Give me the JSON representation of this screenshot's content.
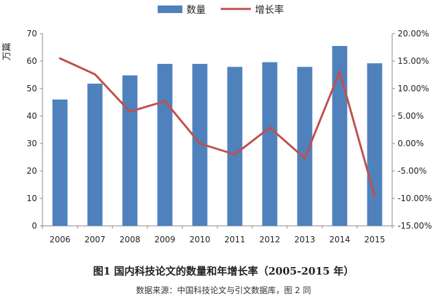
{
  "chart_data": {
    "type": "bar+line",
    "categories": [
      "2006",
      "2007",
      "2008",
      "2009",
      "2010",
      "2011",
      "2012",
      "2013",
      "2014",
      "2015"
    ],
    "series": [
      {
        "name": "数量",
        "type": "bar",
        "axis": "left",
        "color": "#4f81bd",
        "values": [
          46.0,
          51.8,
          54.8,
          59.0,
          59.0,
          57.9,
          59.6,
          57.9,
          65.5,
          59.2
        ]
      },
      {
        "name": "增长率",
        "type": "line",
        "axis": "right",
        "color": "#c0504d",
        "values": [
          15.5,
          12.6,
          5.8,
          7.7,
          0.0,
          -2.0,
          2.9,
          -2.7,
          13.1,
          -9.6
        ]
      }
    ],
    "y_left": {
      "label": "万篇",
      "min": 0,
      "max": 70,
      "step": 10,
      "ticks": [
        "0",
        "10",
        "20",
        "30",
        "40",
        "50",
        "60",
        "70"
      ]
    },
    "y_right": {
      "min": -15,
      "max": 20,
      "step": 5,
      "ticks": [
        "-15.00%",
        "-10.00%",
        "-5.00%",
        "0.00%",
        "5.00%",
        "10.00%",
        "15.00%",
        "20.00%"
      ]
    },
    "legend": {
      "position": "top",
      "items": [
        "数量",
        "增长率"
      ]
    },
    "grid": false
  },
  "caption": "图1 国内科技论文的数量和年增长率（2005-2015 年）",
  "source": "数据来源：中国科技论文与引文数据库，图 2 同"
}
